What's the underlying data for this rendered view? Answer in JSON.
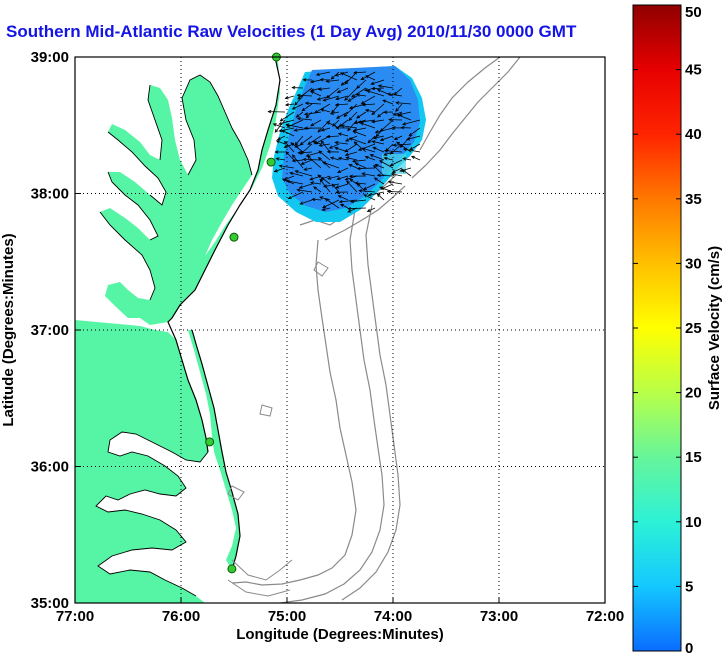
{
  "title": "Southern Mid-Atlantic Raw Velocities (1 Day Avg) 2010/11/30 0000 GMT",
  "map": {
    "xlabel": "Longitude (Degrees:Minutes)",
    "ylabel": "Latitude (Degrees:Minutes)",
    "lon_range": [
      -77,
      -72
    ],
    "lat_range": [
      35,
      39
    ],
    "x_ticks": [
      {
        "value": -77,
        "label": "77:00"
      },
      {
        "value": -76,
        "label": "76:00"
      },
      {
        "value": -75,
        "label": "75:00"
      },
      {
        "value": -74,
        "label": "74:00"
      },
      {
        "value": -73,
        "label": "73:00"
      },
      {
        "value": -72,
        "label": "72:00"
      }
    ],
    "y_ticks": [
      {
        "value": 35,
        "label": "35:00"
      },
      {
        "value": 36,
        "label": "36:00"
      },
      {
        "value": 37,
        "label": "37:00"
      },
      {
        "value": 38,
        "label": "38:00"
      },
      {
        "value": 39,
        "label": "39:00"
      }
    ],
    "grid": "dotted",
    "colors": {
      "land": "#55f5a5",
      "water": "#ffffff",
      "coastline": "#000000",
      "bathymetry": "#8a8a8a",
      "station": "#33cc33",
      "velocity_field": "#2a8cf2",
      "velocity_field_edge": "#12c8f0"
    },
    "stations": [
      {
        "lon": -75.1,
        "lat": 39.0
      },
      {
        "lon": -75.15,
        "lat": 38.23
      },
      {
        "lon": -75.5,
        "lat": 37.68
      },
      {
        "lon": -75.73,
        "lat": 36.18
      },
      {
        "lon": -75.52,
        "lat": 35.25
      }
    ]
  },
  "colorbar": {
    "label": "Surface Velocity (cm/s)",
    "min": 0,
    "max": 50,
    "ticks": [
      {
        "value": 0,
        "label": "0"
      },
      {
        "value": 5,
        "label": "5"
      },
      {
        "value": 10,
        "label": "10"
      },
      {
        "value": 15,
        "label": "15"
      },
      {
        "value": 20,
        "label": "20"
      },
      {
        "value": 25,
        "label": "25"
      },
      {
        "value": 30,
        "label": "30"
      },
      {
        "value": 35,
        "label": "35"
      },
      {
        "value": 40,
        "label": "40"
      },
      {
        "value": 45,
        "label": "45"
      },
      {
        "value": 50,
        "label": "50"
      }
    ],
    "stops": [
      "#0a6cff",
      "#14c8ff",
      "#2cf2d6",
      "#66f59a",
      "#b8ff48",
      "#ffff00",
      "#ffc000",
      "#ff7800",
      "#ff2400",
      "#e60000",
      "#900000"
    ]
  }
}
